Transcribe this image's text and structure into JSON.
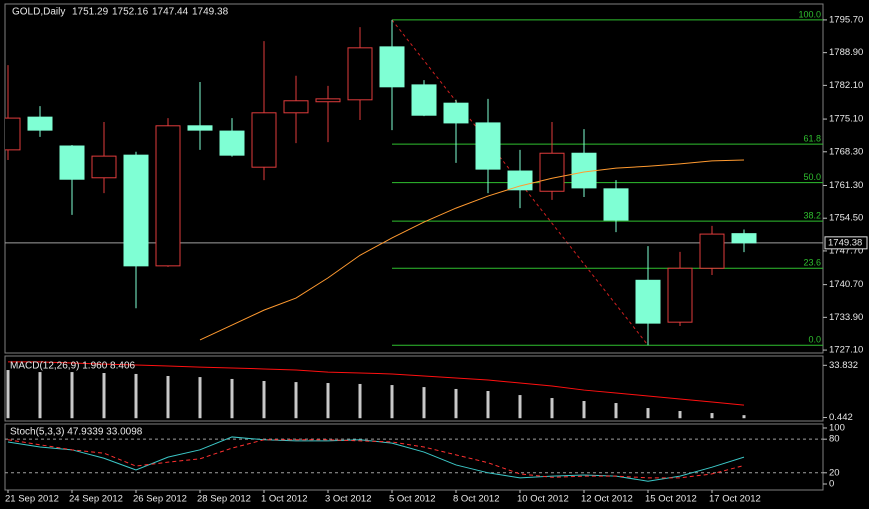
{
  "chart_data": [
    {
      "type": "candlestick",
      "title": "GOLD,Daily",
      "categories": [
        "21 Sep 2012",
        null,
        "24 Sep 2012",
        null,
        "26 Sep 2012",
        null,
        "28 Sep 2012",
        null,
        "1 Oct 2012",
        null,
        "3 Oct 2012",
        null,
        "5 Oct 2012",
        null,
        "8 Oct 2012",
        null,
        "10 Oct 2012",
        null,
        "12 Oct 2012",
        null,
        "15 Oct 2012",
        null,
        "17 Oct 2012",
        null
      ],
      "open": [
        1768.7,
        1775.5,
        1769.5,
        1762.9,
        1767.6,
        1744.6,
        1773.7,
        1772.6,
        1765.1,
        1776.4,
        1778.7,
        1779.1,
        1790.1,
        1782.2,
        1778.4,
        1774.3,
        1764.3,
        1760.1,
        1768.0,
        1760.6,
        1741.6,
        1732.9,
        1744.1,
        1751.29
      ],
      "high": [
        1786.3,
        1777.8,
        1769.7,
        1774.5,
        1768.3,
        1775.3,
        1782.8,
        1775.3,
        1791.3,
        1784.1,
        1782.0,
        1794.2,
        1795.7,
        1783.2,
        1779.1,
        1779.3,
        1768.7,
        1774.5,
        1773.0,
        1762.4,
        1748.7,
        1747.5,
        1752.9,
        1752.16
      ],
      "low": [
        1766.6,
        1771.4,
        1755.2,
        1759.7,
        1735.8,
        1744.4,
        1768.7,
        1767.3,
        1762.4,
        1770.1,
        1770.3,
        1774.9,
        1772.8,
        1775.7,
        1766.0,
        1759.7,
        1756.6,
        1758.3,
        1758.9,
        1751.6,
        1728.1,
        1732.1,
        1742.7,
        1747.44
      ],
      "close": [
        1775.3,
        1772.8,
        1762.6,
        1767.4,
        1744.6,
        1773.7,
        1772.8,
        1767.6,
        1776.4,
        1778.9,
        1779.3,
        1789.9,
        1781.8,
        1775.9,
        1774.3,
        1764.7,
        1760.4,
        1768.0,
        1760.8,
        1754.1,
        1732.7,
        1744.1,
        1751.2,
        1749.38
      ],
      "up_color": "#e03c3c",
      "down_color": "#7fffd4",
      "ylim": [
        1726.7,
        1798.8
      ],
      "yticks": [
        {
          "value": 1795.7,
          "label": "1795.70"
        },
        {
          "value": 1788.9,
          "label": "1788.90"
        },
        {
          "value": 1782.1,
          "label": "1782.10"
        },
        {
          "value": 1775.1,
          "label": "1775.10"
        },
        {
          "value": 1768.3,
          "label": "1768.30"
        },
        {
          "value": 1761.3,
          "label": "1761.30"
        },
        {
          "value": 1754.5,
          "label": "1754.50"
        },
        {
          "value": 1747.7,
          "label": "1747.70"
        },
        {
          "value": 1740.7,
          "label": "1740.70"
        },
        {
          "value": 1733.9,
          "label": "1733.90"
        },
        {
          "value": 1727.1,
          "label": "1727.10"
        }
      ],
      "ma": {
        "color": "#ff9a30",
        "values": [
          null,
          null,
          null,
          null,
          null,
          null,
          1729.2,
          1732.3,
          1735.4,
          1737.9,
          1742.1,
          1746.8,
          1750.4,
          1753.7,
          1756.6,
          1759.1,
          1761.2,
          1762.8,
          1764.1,
          1764.9,
          1765.3,
          1765.8,
          1766.4,
          1766.6
        ]
      },
      "fib": {
        "color": "#2fc02f",
        "trend_color": "#d02020",
        "labels": [
          "100.0",
          "61.8",
          "50.0",
          "38.2",
          "23.6",
          "0.0"
        ],
        "prices": [
          1795.7,
          1769.9,
          1761.9,
          1753.9,
          1744.1,
          1728.1
        ]
      },
      "last_price_line": true
    },
    {
      "type": "macd",
      "title": "MACD(12,26,9) 1.960 8.406",
      "histogram": {
        "color": "#c8c8c8",
        "values": [
          30.8,
          29.5,
          29.5,
          28.9,
          28.3,
          27.0,
          26.3,
          25.1,
          23.8,
          23.1,
          22.5,
          21.9,
          21.2,
          19.9,
          18.7,
          17.4,
          14.8,
          12.9,
          11.0,
          9.7,
          6.5,
          4.6,
          3.3,
          1.96
        ]
      },
      "signal": {
        "color": "#ff1010",
        "values": [
          36.0,
          36.0,
          35.3,
          34.6,
          34.0,
          33.4,
          32.7,
          32.1,
          31.5,
          30.8,
          29.5,
          28.9,
          28.3,
          27.0,
          25.7,
          24.4,
          22.5,
          20.6,
          18.0,
          16.1,
          14.2,
          12.3,
          10.4,
          8.406
        ]
      },
      "ylim": [
        -0.5,
        38.5
      ],
      "yticks": [
        33.832,
        0.442
      ]
    },
    {
      "type": "stochastic",
      "title": "Stoch(5,3,3) 47.9339 33.0098",
      "main": {
        "color": "#3cc8c8",
        "values": [
          75,
          66,
          61,
          46,
          25,
          48,
          61,
          84,
          79,
          77,
          77,
          79,
          73,
          57,
          34,
          20,
          11,
          14,
          16,
          14,
          5,
          14,
          30,
          47.9339
        ]
      },
      "signal": {
        "color": "#ff3030",
        "values": [
          79,
          70,
          61,
          55,
          32,
          39,
          45,
          64,
          79,
          79,
          79,
          77,
          75,
          66,
          52,
          38,
          18,
          12,
          14,
          14,
          11,
          11,
          18,
          33.0098
        ]
      },
      "ylim": [
        -10.7,
        107.1
      ],
      "yticks": [
        100,
        80,
        20,
        0
      ],
      "levels": [
        80,
        20
      ]
    }
  ]
}
